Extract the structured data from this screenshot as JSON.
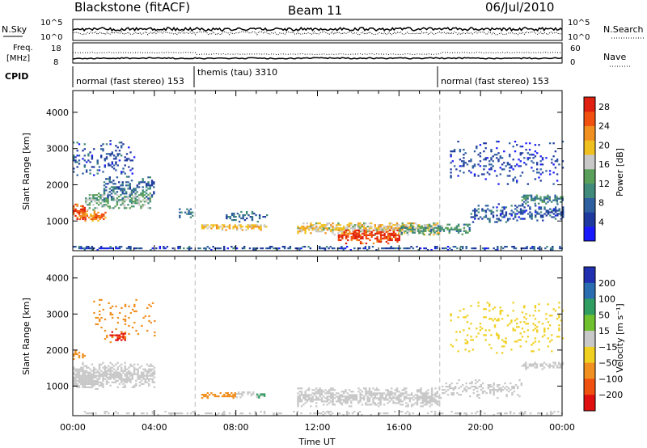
{
  "header": {
    "station": "Blackstone (fitACF)",
    "beam": "Beam 11",
    "date": "06/Jul/2010"
  },
  "panels": {
    "nsky": {
      "left_label": "N.Sky",
      "left_ticks": [
        "10^5",
        "10^0"
      ],
      "right_label": "N.Search",
      "right_ticks": [
        "10^5",
        "10^0"
      ]
    },
    "freq": {
      "left_label_line1": "Freq.",
      "left_label_line2": "[MHz]",
      "left_ticks": [
        "18",
        "8"
      ],
      "right_label": "Nave",
      "right_ticks": [
        "60",
        "0"
      ]
    },
    "cpid": {
      "label": "CPID",
      "segments": [
        {
          "name": "normal (fast stereo) 153",
          "start_hour": 0
        },
        {
          "name": "themis (tau) 3310",
          "start_hour": 6
        },
        {
          "name": "normal (fast stereo) 153",
          "start_hour": 18
        }
      ]
    }
  },
  "chart_data": [
    {
      "type": "heatmap",
      "quantity": "power",
      "ylabel": "Slant Range [km]",
      "xlabel": "Time UT",
      "xlim_hours": [
        0,
        24
      ],
      "ylim_km": [
        180,
        4600
      ],
      "y_ticks": [
        "1000",
        "2000",
        "3000",
        "4000"
      ],
      "x_ticks": [
        "00:00",
        "04:00",
        "08:00",
        "12:00",
        "16:00",
        "20:00",
        "00:00"
      ],
      "colorbar": {
        "label": "Power [dB]",
        "ticks": [
          "28",
          "24",
          "20",
          "16",
          "12",
          "8",
          "4"
        ],
        "range": [
          0,
          30
        ],
        "colors": [
          "#1a1aff",
          "#1f3a9e",
          "#2e5f9e",
          "#3f8a7a",
          "#5aa05a",
          "#c8c8c8",
          "#f0c020",
          "#f09020",
          "#f05010",
          "#e02010"
        ]
      },
      "echo_regions": [
        {
          "t_start": 0.0,
          "t_end": 0.6,
          "r_center": 1250,
          "r_width": 220,
          "value": 26,
          "density": 0.9
        },
        {
          "t_start": 0.3,
          "t_end": 1.6,
          "r_center": 1100,
          "r_width": 160,
          "value": 24,
          "density": 0.85
        },
        {
          "t_start": 0.6,
          "t_end": 3.8,
          "r_center": 1550,
          "r_width": 260,
          "value": 14,
          "density": 0.7
        },
        {
          "t_start": 1.5,
          "t_end": 4.0,
          "r_center": 1900,
          "r_width": 300,
          "value": 8,
          "density": 0.55
        },
        {
          "t_start": 0.0,
          "t_end": 3.0,
          "r_center": 2700,
          "r_width": 500,
          "value": 6,
          "density": 0.25
        },
        {
          "t_start": 5.2,
          "t_end": 6.0,
          "r_center": 1200,
          "r_width": 120,
          "value": 8,
          "density": 0.6
        },
        {
          "t_start": 6.3,
          "t_end": 9.5,
          "r_center": 820,
          "r_width": 90,
          "value": 20,
          "density": 0.8
        },
        {
          "t_start": 7.5,
          "t_end": 9.5,
          "r_center": 1100,
          "r_width": 140,
          "value": 8,
          "density": 0.5
        },
        {
          "t_start": 11.0,
          "t_end": 18.0,
          "r_center": 780,
          "r_width": 180,
          "value": 18,
          "density": 0.8
        },
        {
          "t_start": 13.0,
          "t_end": 16.0,
          "r_center": 560,
          "r_width": 200,
          "value": 27,
          "density": 0.85
        },
        {
          "t_start": 16.0,
          "t_end": 19.5,
          "r_center": 750,
          "r_width": 140,
          "value": 12,
          "density": 0.7
        },
        {
          "t_start": 19.5,
          "t_end": 24.0,
          "r_center": 1200,
          "r_width": 250,
          "value": 6,
          "density": 0.5
        },
        {
          "t_start": 22.0,
          "t_end": 24.0,
          "r_center": 1580,
          "r_width": 120,
          "value": 10,
          "density": 0.8
        },
        {
          "t_start": 18.5,
          "t_end": 24.0,
          "r_center": 2600,
          "r_width": 600,
          "value": 5,
          "density": 0.2
        },
        {
          "t_start": 0.0,
          "t_end": 24.0,
          "r_center": 230,
          "r_width": 50,
          "value": 6,
          "density": 0.6
        }
      ]
    },
    {
      "type": "heatmap",
      "quantity": "velocity",
      "ylabel": "Slant Range [km]",
      "xlabel": "Time UT",
      "xlim_hours": [
        0,
        24
      ],
      "ylim_km": [
        180,
        4600
      ],
      "y_ticks": [
        "1000",
        "2000",
        "3000",
        "4000"
      ],
      "x_ticks": [
        "00:00",
        "04:00",
        "08:00",
        "12:00",
        "16:00",
        "20:00",
        "00:00"
      ],
      "colorbar": {
        "label": "Velocity [m s⁻¹]",
        "ticks": [
          "200",
          "100",
          "50",
          "15",
          "−15",
          "−50",
          "−100",
          "−200"
        ],
        "colors": [
          "#2030b0",
          "#2a6db0",
          "#2f9e60",
          "#70c030",
          "#c8c8c8",
          "#f0d020",
          "#f09020",
          "#f05010",
          "#e01010"
        ]
      },
      "echo_regions": [
        {
          "t_start": 0.0,
          "t_end": 4.0,
          "r_center": 1300,
          "r_width": 350,
          "value": 0,
          "density": 0.8
        },
        {
          "t_start": 0.0,
          "t_end": 1.5,
          "r_center": 1100,
          "r_width": 200,
          "value": 0,
          "density": 0.8
        },
        {
          "t_start": 0.0,
          "t_end": 0.6,
          "r_center": 1850,
          "r_width": 120,
          "value": -60,
          "density": 0.6
        },
        {
          "t_start": 1.8,
          "t_end": 2.6,
          "r_center": 2350,
          "r_width": 140,
          "value": -200,
          "density": 0.7
        },
        {
          "t_start": 1.0,
          "t_end": 4.0,
          "r_center": 2800,
          "r_width": 600,
          "value": -60,
          "density": 0.15
        },
        {
          "t_start": 6.3,
          "t_end": 8.0,
          "r_center": 730,
          "r_width": 80,
          "value": -70,
          "density": 0.85
        },
        {
          "t_start": 8.0,
          "t_end": 9.4,
          "r_center": 760,
          "r_width": 90,
          "value": 0,
          "density": 0.6
        },
        {
          "t_start": 9.0,
          "t_end": 9.4,
          "r_center": 720,
          "r_width": 60,
          "value": 60,
          "density": 0.8
        },
        {
          "t_start": 11.0,
          "t_end": 18.0,
          "r_center": 680,
          "r_width": 260,
          "value": 0,
          "density": 0.8
        },
        {
          "t_start": 18.0,
          "t_end": 22.0,
          "r_center": 900,
          "r_width": 250,
          "value": 0,
          "density": 0.4
        },
        {
          "t_start": 22.0,
          "t_end": 24.0,
          "r_center": 1560,
          "r_width": 110,
          "value": 0,
          "density": 0.8
        },
        {
          "t_start": 18.5,
          "t_end": 24.0,
          "r_center": 2600,
          "r_width": 700,
          "value": -30,
          "density": 0.15
        },
        {
          "t_start": 0.0,
          "t_end": 24.0,
          "r_center": 230,
          "r_width": 50,
          "value": 0,
          "density": 0.4
        }
      ]
    }
  ],
  "axis": {
    "xlabel": "Time UT"
  }
}
